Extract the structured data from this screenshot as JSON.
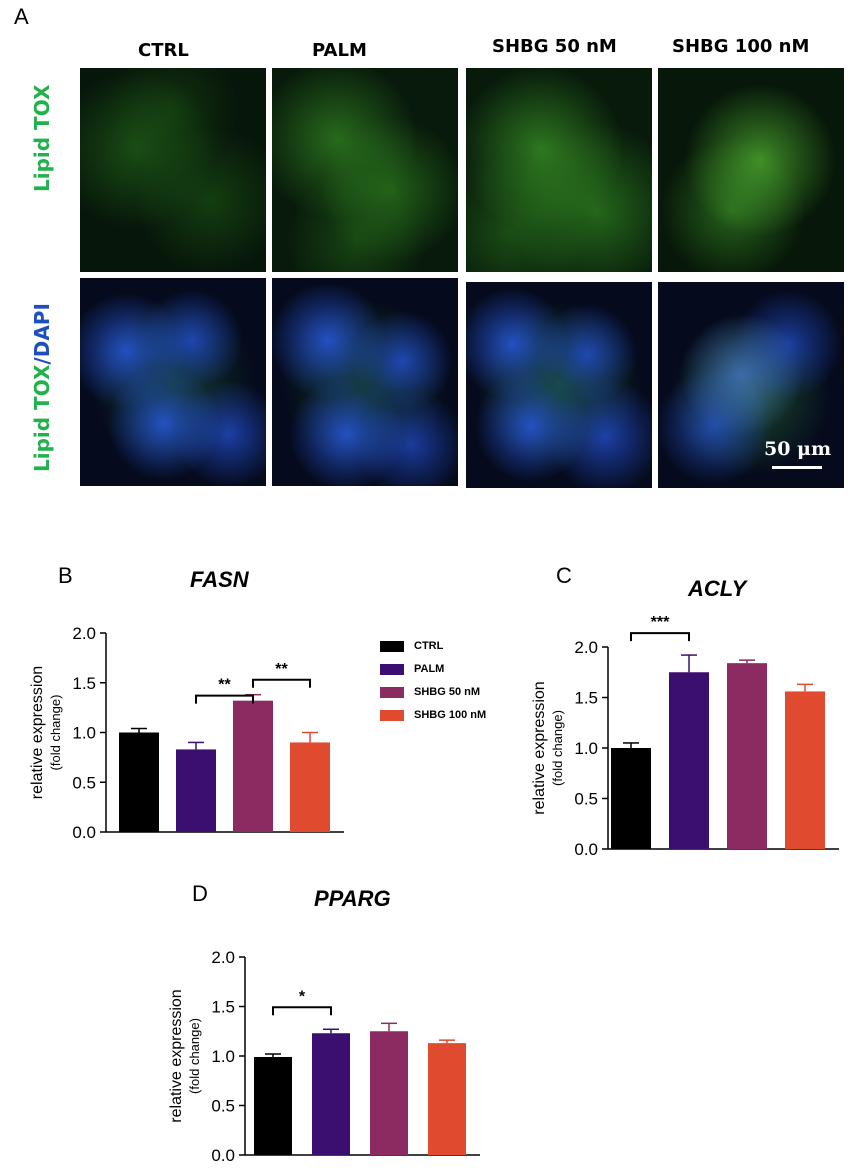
{
  "panel_letters": [
    "A",
    "B",
    "C",
    "D"
  ],
  "microscopy": {
    "columns": [
      "CTRL",
      "PALM",
      "SHBG 50 nM",
      "SHBG 100 nM"
    ],
    "row_labels": {
      "top": "Lipid TOX",
      "bottom_green": "Lipid TOX",
      "bottom_sep": "/",
      "bottom_blue": "DAPI"
    },
    "scale_bar": "50 μm",
    "colors": {
      "green": "#21b24b",
      "blue": "#1f4fbd"
    }
  },
  "legend": {
    "entries": [
      {
        "label": "CTRL",
        "color": "#000000"
      },
      {
        "label": "PALM",
        "color": "#3b0f70"
      },
      {
        "label": "SHBG 50 nM",
        "color": "#8c2a62"
      },
      {
        "label": "SHBG 100 nM",
        "color": "#e04a2e"
      }
    ]
  },
  "chart_data": [
    {
      "type": "bar",
      "title": "FASN",
      "categories": [
        "CTRL",
        "PALM",
        "SHBG 50 nM",
        "SHBG 100 nM"
      ],
      "values": [
        1.0,
        0.83,
        1.32,
        0.9
      ],
      "errors": [
        0.04,
        0.07,
        0.06,
        0.1
      ],
      "ylabel": "relative expression",
      "ylabel2": "(fold change)",
      "ylim": [
        0,
        2.0
      ],
      "yticks": [
        "0.0",
        "0.5",
        "1.0",
        "1.5",
        "2.0"
      ],
      "significance": [
        {
          "from": 1,
          "to": 2,
          "label": "**"
        },
        {
          "from": 2,
          "to": 3,
          "label": "**"
        }
      ]
    },
    {
      "type": "bar",
      "title": "ACLY",
      "categories": [
        "CTRL",
        "PALM",
        "SHBG 50 nM",
        "SHBG 100 nM"
      ],
      "values": [
        1.0,
        1.75,
        1.84,
        1.56
      ],
      "errors": [
        0.05,
        0.17,
        0.03,
        0.07
      ],
      "ylabel": "relative expression",
      "ylabel2": "(fold change)",
      "ylim": [
        0,
        2.0
      ],
      "yticks": [
        "0.0",
        "0.5",
        "1.0",
        "1.5",
        "2.0"
      ],
      "significance": [
        {
          "from": 0,
          "to": 1,
          "label": "***"
        }
      ]
    },
    {
      "type": "bar",
      "title": "PPARG",
      "categories": [
        "CTRL",
        "PALM",
        "SHBG 50 nM",
        "SHBG 100 nM"
      ],
      "values": [
        0.99,
        1.23,
        1.25,
        1.13
      ],
      "errors": [
        0.03,
        0.04,
        0.08,
        0.03
      ],
      "ylabel": "relative expression",
      "ylabel2": "(fold change)",
      "ylim": [
        0,
        2.0
      ],
      "yticks": [
        "0.0",
        "0.5",
        "1.0",
        "1.5",
        "2.0"
      ],
      "significance": [
        {
          "from": 0,
          "to": 1,
          "label": "*"
        }
      ]
    }
  ]
}
